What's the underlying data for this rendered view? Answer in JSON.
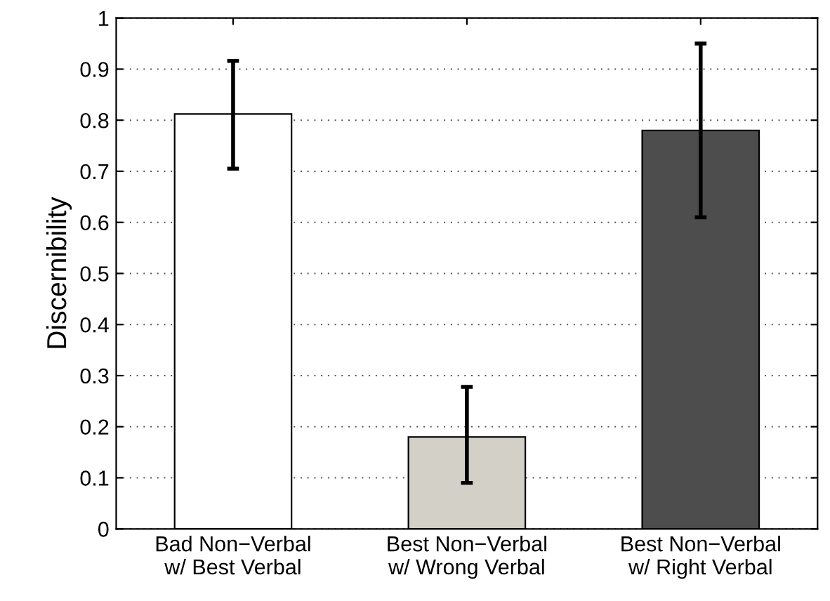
{
  "chart_data": {
    "type": "bar",
    "ylabel": "Discernibility",
    "categories": [
      "Bad Non−Verbal\nw/ Best Verbal",
      "Best Non−Verbal\nw/ Wrong Verbal",
      "Best Non−Verbal\nw/ Right Verbal"
    ],
    "values": [
      0.812,
      0.18,
      0.78
    ],
    "colors": [
      "#ffffff",
      "#d3d0c8",
      "#4d4d4d"
    ],
    "errors": [
      [
        0.705,
        0.916
      ],
      [
        0.09,
        0.278
      ],
      [
        0.61,
        0.95
      ]
    ],
    "ylim": [
      0,
      1
    ],
    "yticks": [
      0,
      0.1,
      0.2,
      0.3,
      0.4,
      0.5,
      0.6,
      0.7,
      0.8,
      0.9,
      1
    ],
    "grid": "y",
    "legend": false
  }
}
